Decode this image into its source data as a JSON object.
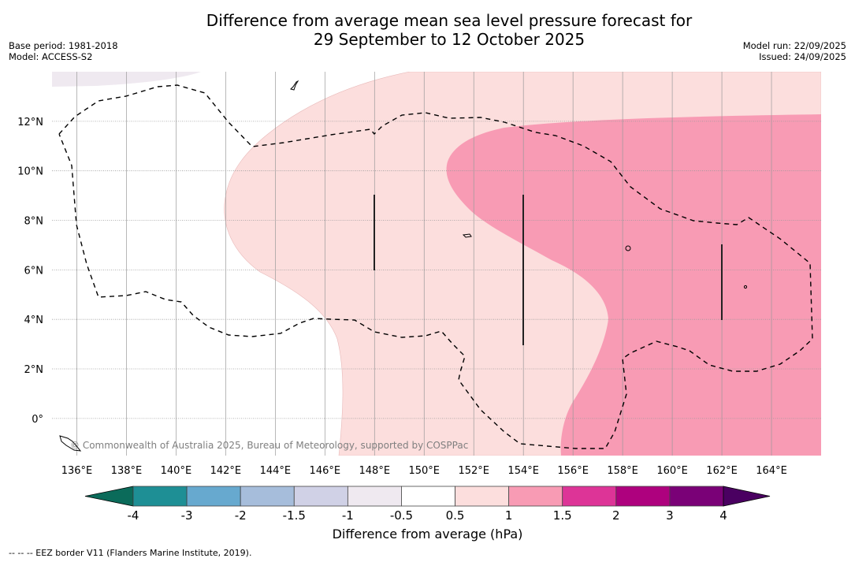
{
  "header": {
    "title_line1": "Difference from average mean sea level pressure forecast for",
    "title_line2": "29 September to 12 October 2025",
    "base_period": "Base period: 1981-2018",
    "model": "Model: ACCESS-S2",
    "model_run": "Model run: 22/09/2025",
    "issued": "Issued: 24/09/2025"
  },
  "map": {
    "lon_range": [
      135,
      166
    ],
    "lat_range": [
      -1.5,
      14
    ],
    "x_ticks": [
      "136°E",
      "138°E",
      "140°E",
      "142°E",
      "144°E",
      "146°E",
      "148°E",
      "150°E",
      "152°E",
      "154°E",
      "156°E",
      "158°E",
      "160°E",
      "162°E",
      "164°E"
    ],
    "x_tick_values": [
      136,
      138,
      140,
      142,
      144,
      146,
      148,
      150,
      152,
      154,
      156,
      158,
      160,
      162,
      164
    ],
    "y_ticks": [
      "0°",
      "2°N",
      "4°N",
      "6°N",
      "8°N",
      "10°N",
      "12°N"
    ],
    "y_tick_values": [
      0,
      2,
      4,
      6,
      8,
      10,
      12
    ],
    "regions": [
      {
        "name": "category-minus1-to-minus0.5",
        "color": "#efe9f0"
      },
      {
        "name": "category-0.5-to-1",
        "color": "#fcdedd"
      },
      {
        "name": "category-1-to-1.5",
        "color": "#f89bb4"
      }
    ],
    "credit": "© Commonwealth of Australia 2025, Bureau of Meteorology, supported by COSPPac"
  },
  "colorbar": {
    "label": "Difference from average (hPa)",
    "ticks": [
      "-4",
      "-3",
      "-2",
      "-1.5",
      "-1",
      "-0.5",
      "0.5",
      "1",
      "1.5",
      "2",
      "3",
      "4"
    ],
    "under_color": "#0b6b5a",
    "over_color": "#4a0061",
    "colors": [
      "#1e8f95",
      "#67a9cf",
      "#a6bddb",
      "#d0d1e6",
      "#efe9f0",
      "#ffffff",
      "#fcdedd",
      "#f89bb4",
      "#dd3497",
      "#ae017e",
      "#7a0177"
    ]
  },
  "footer": {
    "legend": "--  --  -- EEZ border V11 (Flanders Marine Institute, 2019)."
  }
}
